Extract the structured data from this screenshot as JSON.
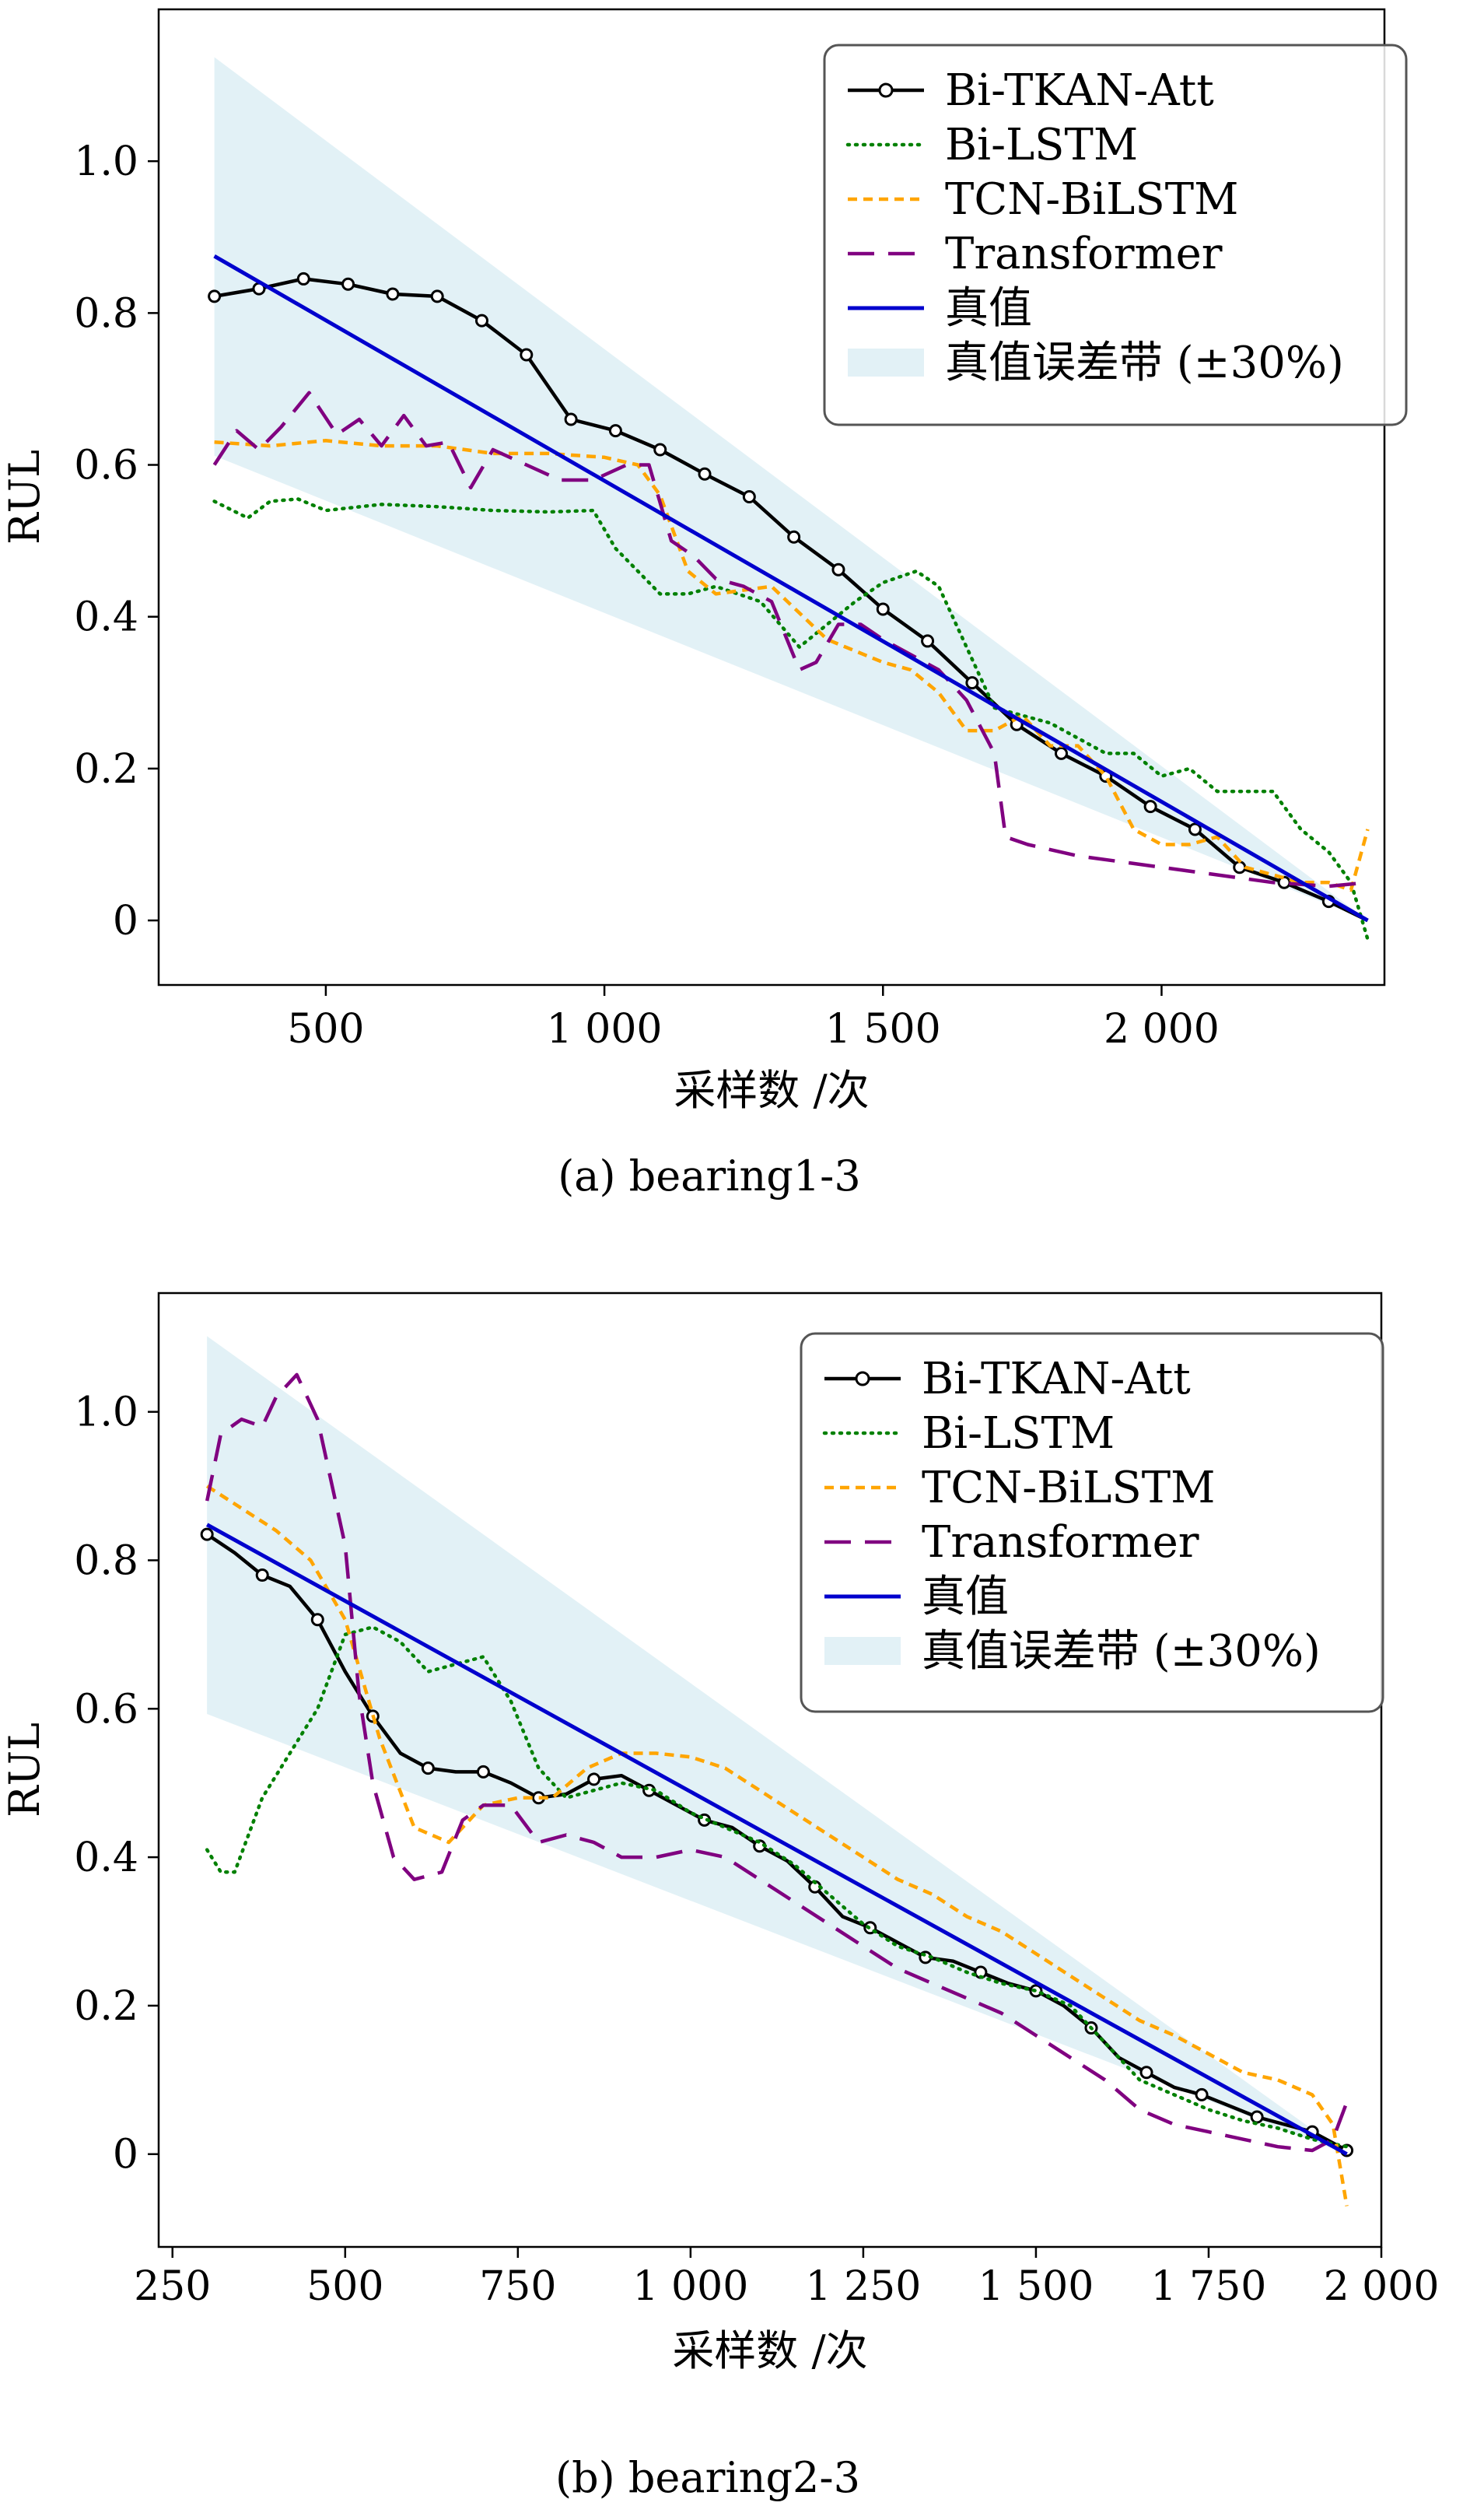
{
  "chart_data": [
    {
      "type": "line",
      "caption": "(a) bearing1-3",
      "xlabel": "采样数 /次",
      "ylabel": "RUL",
      "xlim": [
        200,
        2400
      ],
      "ylim": [
        -0.085,
        1.2
      ],
      "xticks": [
        500,
        1000,
        1500,
        2000
      ],
      "xtick_labels": [
        "500",
        "1 000",
        "1 500",
        "2 000"
      ],
      "yticks": [
        0,
        0.2,
        0.4,
        0.6,
        0.8,
        1.0
      ],
      "ytick_labels": [
        "0",
        "0.2",
        "0.4",
        "0.6",
        "0.8",
        "1.0"
      ],
      "legend_position": "top-right",
      "band": {
        "name": "真值误差带 (±30%)",
        "x": [
          300,
          2370
        ],
        "upper": [
          1.137,
          0.0
        ],
        "lower": [
          0.612,
          0.0
        ],
        "color": "#add8e6"
      },
      "series": [
        {
          "name": "Bi-TKAN-Att",
          "color": "#000000",
          "style": "solid-marker",
          "x": [
            300,
            380,
            460,
            540,
            620,
            700,
            780,
            860,
            940,
            1020,
            1100,
            1180,
            1260,
            1340,
            1420,
            1500,
            1580,
            1660,
            1740,
            1820,
            1900,
            1980,
            2060,
            2140,
            2220,
            2300,
            2370
          ],
          "y": [
            0.822,
            0.832,
            0.845,
            0.838,
            0.825,
            0.822,
            0.79,
            0.745,
            0.66,
            0.645,
            0.62,
            0.588,
            0.558,
            0.505,
            0.462,
            0.41,
            0.368,
            0.313,
            0.258,
            0.22,
            0.19,
            0.15,
            0.12,
            0.07,
            0.05,
            0.025,
            0.0
          ],
          "marker_x": [
            300,
            380,
            460,
            540,
            620,
            700,
            780,
            860,
            940,
            1020,
            1100,
            1180,
            1260,
            1340,
            1420,
            1500,
            1580,
            1660,
            1740,
            1820,
            1900,
            1980,
            2060,
            2140,
            2220,
            2300
          ],
          "marker_y": [
            0.822,
            0.832,
            0.845,
            0.838,
            0.825,
            0.822,
            0.79,
            0.745,
            0.66,
            0.645,
            0.62,
            0.588,
            0.558,
            0.505,
            0.462,
            0.41,
            0.368,
            0.313,
            0.258,
            0.22,
            0.19,
            0.15,
            0.12,
            0.07,
            0.05,
            0.025
          ]
        },
        {
          "name": "Bi-LSTM",
          "color": "#008000",
          "style": "dotted",
          "x": [
            300,
            360,
            400,
            450,
            500,
            600,
            700,
            800,
            900,
            980,
            1020,
            1060,
            1100,
            1150,
            1200,
            1280,
            1350,
            1400,
            1450,
            1500,
            1560,
            1600,
            1650,
            1700,
            1750,
            1800,
            1900,
            1950,
            2000,
            2050,
            2100,
            2150,
            2200,
            2250,
            2300,
            2340,
            2370
          ],
          "y": [
            0.552,
            0.53,
            0.552,
            0.555,
            0.54,
            0.548,
            0.545,
            0.54,
            0.538,
            0.54,
            0.49,
            0.46,
            0.43,
            0.43,
            0.44,
            0.42,
            0.36,
            0.39,
            0.42,
            0.445,
            0.46,
            0.44,
            0.36,
            0.28,
            0.27,
            0.26,
            0.22,
            0.22,
            0.19,
            0.2,
            0.17,
            0.17,
            0.17,
            0.12,
            0.09,
            0.05,
            -0.025
          ]
        },
        {
          "name": "TCN-BiLSTM",
          "color": "#ffa500",
          "style": "dashed",
          "x": [
            300,
            400,
            500,
            600,
            700,
            800,
            900,
            1000,
            1060,
            1100,
            1150,
            1200,
            1300,
            1400,
            1500,
            1550,
            1600,
            1650,
            1700,
            1750,
            1800,
            1850,
            1900,
            1950,
            2000,
            2050,
            2100,
            2150,
            2200,
            2250,
            2300,
            2340,
            2370
          ],
          "y": [
            0.63,
            0.625,
            0.632,
            0.625,
            0.625,
            0.615,
            0.615,
            0.61,
            0.6,
            0.56,
            0.46,
            0.43,
            0.44,
            0.37,
            0.34,
            0.33,
            0.3,
            0.25,
            0.25,
            0.27,
            0.23,
            0.23,
            0.19,
            0.12,
            0.1,
            0.1,
            0.11,
            0.07,
            0.06,
            0.05,
            0.05,
            0.04,
            0.12
          ]
        },
        {
          "name": "Transformer",
          "color": "#800080",
          "style": "longdash",
          "x": [
            300,
            340,
            380,
            420,
            470,
            520,
            560,
            600,
            640,
            680,
            720,
            760,
            800,
            860,
            920,
            980,
            1040,
            1080,
            1120,
            1160,
            1200,
            1250,
            1300,
            1350,
            1380,
            1420,
            1460,
            1500,
            1550,
            1600,
            1650,
            1700,
            1720,
            1760,
            1850,
            1950,
            2100,
            2200,
            2300,
            2370
          ],
          "y": [
            0.6,
            0.645,
            0.62,
            0.65,
            0.695,
            0.64,
            0.66,
            0.625,
            0.665,
            0.625,
            0.63,
            0.57,
            0.62,
            0.6,
            0.58,
            0.58,
            0.6,
            0.6,
            0.5,
            0.48,
            0.45,
            0.44,
            0.42,
            0.33,
            0.34,
            0.39,
            0.39,
            0.37,
            0.35,
            0.33,
            0.29,
            0.22,
            0.11,
            0.1,
            0.085,
            0.075,
            0.06,
            0.05,
            0.045,
            0.05
          ]
        },
        {
          "name": "真值",
          "color": "#0000cd",
          "style": "solid",
          "x": [
            300,
            2370
          ],
          "y": [
            0.875,
            0.0
          ]
        }
      ]
    },
    {
      "type": "line",
      "caption": "(b) bearing2-3",
      "xlabel": "采样数 /次",
      "ylabel": "RUL",
      "xlim": [
        230,
        2000
      ],
      "ylim": [
        -0.125,
        1.16
      ],
      "xticks": [
        250,
        500,
        750,
        1000,
        1250,
        1500,
        1750,
        2000
      ],
      "xtick_labels": [
        "250",
        "500",
        "750",
        "1 000",
        "1 250",
        "1 500",
        "1 750",
        "2 000"
      ],
      "yticks": [
        0,
        0.2,
        0.4,
        0.6,
        0.8,
        1.0
      ],
      "ytick_labels": [
        "0",
        "0.2",
        "0.4",
        "0.6",
        "0.8",
        "1.0"
      ],
      "legend_position": "top-right",
      "band": {
        "name": "真值误差带 (±30%)",
        "x": [
          300,
          1950
        ],
        "upper": [
          1.102,
          0.0
        ],
        "lower": [
          0.593,
          0.0
        ],
        "color": "#add8e6"
      },
      "series": [
        {
          "name": "Bi-TKAN-Att",
          "color": "#000000",
          "style": "solid-marker",
          "x": [
            300,
            340,
            380,
            420,
            460,
            500,
            540,
            580,
            620,
            660,
            700,
            740,
            780,
            820,
            860,
            900,
            940,
            980,
            1020,
            1060,
            1100,
            1140,
            1180,
            1220,
            1260,
            1300,
            1340,
            1380,
            1420,
            1460,
            1500,
            1540,
            1580,
            1620,
            1660,
            1700,
            1740,
            1780,
            1820,
            1860,
            1900,
            1950
          ],
          "y": [
            0.835,
            0.81,
            0.78,
            0.765,
            0.72,
            0.65,
            0.59,
            0.54,
            0.52,
            0.515,
            0.515,
            0.5,
            0.48,
            0.485,
            0.505,
            0.51,
            0.49,
            0.47,
            0.45,
            0.44,
            0.415,
            0.395,
            0.36,
            0.32,
            0.305,
            0.285,
            0.265,
            0.26,
            0.245,
            0.23,
            0.22,
            0.2,
            0.17,
            0.13,
            0.11,
            0.09,
            0.08,
            0.065,
            0.05,
            0.04,
            0.03,
            0.005
          ],
          "marker_x": [
            300,
            380,
            460,
            540,
            620,
            700,
            780,
            860,
            940,
            1020,
            1100,
            1180,
            1260,
            1340,
            1420,
            1500,
            1580,
            1660,
            1740,
            1820,
            1900,
            1950
          ],
          "marker_y": [
            0.835,
            0.78,
            0.72,
            0.59,
            0.52,
            0.515,
            0.48,
            0.505,
            0.49,
            0.45,
            0.415,
            0.36,
            0.305,
            0.265,
            0.245,
            0.22,
            0.17,
            0.11,
            0.08,
            0.05,
            0.03,
            0.005
          ]
        },
        {
          "name": "Bi-LSTM",
          "color": "#008000",
          "style": "dotted",
          "x": [
            300,
            320,
            340,
            380,
            420,
            460,
            500,
            540,
            580,
            620,
            660,
            700,
            740,
            780,
            820,
            860,
            900,
            950,
            1000,
            1050,
            1100,
            1150,
            1200,
            1250,
            1300,
            1350,
            1400,
            1450,
            1500,
            1550,
            1600,
            1650,
            1700,
            1750,
            1800,
            1850,
            1900,
            1950
          ],
          "y": [
            0.41,
            0.38,
            0.38,
            0.48,
            0.54,
            0.6,
            0.7,
            0.71,
            0.69,
            0.65,
            0.66,
            0.67,
            0.61,
            0.52,
            0.48,
            0.49,
            0.5,
            0.49,
            0.46,
            0.44,
            0.42,
            0.39,
            0.35,
            0.31,
            0.28,
            0.265,
            0.245,
            0.23,
            0.22,
            0.2,
            0.15,
            0.1,
            0.08,
            0.06,
            0.045,
            0.035,
            0.02,
            0.01
          ]
        },
        {
          "name": "TCN-BiLSTM",
          "color": "#ffa500",
          "style": "dashed",
          "x": [
            300,
            350,
            400,
            450,
            500,
            550,
            600,
            650,
            700,
            750,
            800,
            850,
            900,
            950,
            1000,
            1050,
            1100,
            1150,
            1200,
            1250,
            1300,
            1350,
            1400,
            1450,
            1500,
            1550,
            1600,
            1650,
            1700,
            1750,
            1800,
            1850,
            1900,
            1930,
            1950
          ],
          "y": [
            0.9,
            0.87,
            0.84,
            0.8,
            0.72,
            0.56,
            0.44,
            0.42,
            0.47,
            0.48,
            0.48,
            0.52,
            0.54,
            0.54,
            0.535,
            0.52,
            0.49,
            0.46,
            0.43,
            0.4,
            0.37,
            0.35,
            0.32,
            0.3,
            0.27,
            0.24,
            0.21,
            0.18,
            0.16,
            0.135,
            0.11,
            0.1,
            0.08,
            0.04,
            -0.07
          ]
        },
        {
          "name": "Transformer",
          "color": "#800080",
          "style": "longdash",
          "x": [
            300,
            320,
            350,
            380,
            400,
            430,
            460,
            500,
            520,
            540,
            570,
            600,
            640,
            670,
            700,
            740,
            780,
            820,
            860,
            900,
            950,
            1000,
            1050,
            1100,
            1150,
            1200,
            1250,
            1300,
            1350,
            1400,
            1450,
            1500,
            1550,
            1600,
            1650,
            1700,
            1750,
            1800,
            1850,
            1900,
            1930,
            1950
          ],
          "y": [
            0.88,
            0.97,
            0.99,
            0.98,
            1.02,
            1.05,
            0.99,
            0.82,
            0.62,
            0.5,
            0.4,
            0.37,
            0.38,
            0.45,
            0.47,
            0.47,
            0.42,
            0.43,
            0.42,
            0.4,
            0.4,
            0.41,
            0.4,
            0.37,
            0.34,
            0.31,
            0.28,
            0.25,
            0.23,
            0.21,
            0.19,
            0.16,
            0.13,
            0.1,
            0.06,
            0.04,
            0.03,
            0.02,
            0.01,
            0.005,
            0.02,
            0.07
          ]
        },
        {
          "name": "真值",
          "color": "#0000cd",
          "style": "solid",
          "x": [
            300,
            1950
          ],
          "y": [
            0.848,
            0.0
          ]
        }
      ]
    }
  ]
}
